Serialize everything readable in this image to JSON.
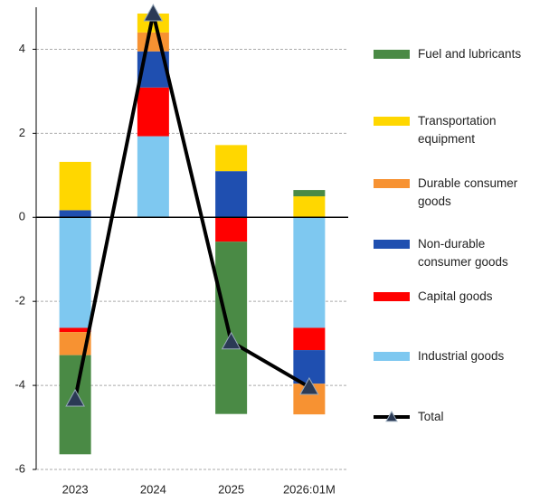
{
  "chart_data": {
    "type": "bar",
    "stacked": true,
    "categories": [
      "2023",
      "2024",
      "2025",
      "2026:01M"
    ],
    "series": [
      {
        "name": "Industrial goods",
        "color": "#7ec8f0",
        "values": [
          -2.63,
          1.93,
          0,
          -2.63
        ]
      },
      {
        "name": "Capital goods",
        "color": "#ff0000",
        "values": [
          -0.1,
          1.16,
          -0.58,
          -0.53
        ]
      },
      {
        "name": "Non-durable consumer goods",
        "color": "#1f4fb0",
        "values": [
          0.17,
          0.86,
          1.1,
          -0.8
        ]
      },
      {
        "name": "Durable consumer goods",
        "color": "#f79232",
        "values": [
          -0.55,
          0.45,
          0,
          -0.73
        ]
      },
      {
        "name": "Transportation equipment",
        "color": "#ffd700",
        "values": [
          1.15,
          0.45,
          0.62,
          0.5
        ]
      },
      {
        "name": "Fuel and lubricants",
        "color": "#4a8a45",
        "values": [
          -2.36,
          0,
          -4.1,
          0.15
        ]
      }
    ],
    "total": {
      "name": "Total",
      "type": "line",
      "color": "#000000",
      "marker_color": "#2b3a55",
      "values": [
        -4.32,
        4.85,
        -2.96,
        -4.04
      ]
    },
    "ylim": [
      -6,
      5
    ],
    "yticks": [
      -6,
      -4,
      -2,
      0,
      2,
      4
    ],
    "grid": true,
    "legend": "right"
  }
}
